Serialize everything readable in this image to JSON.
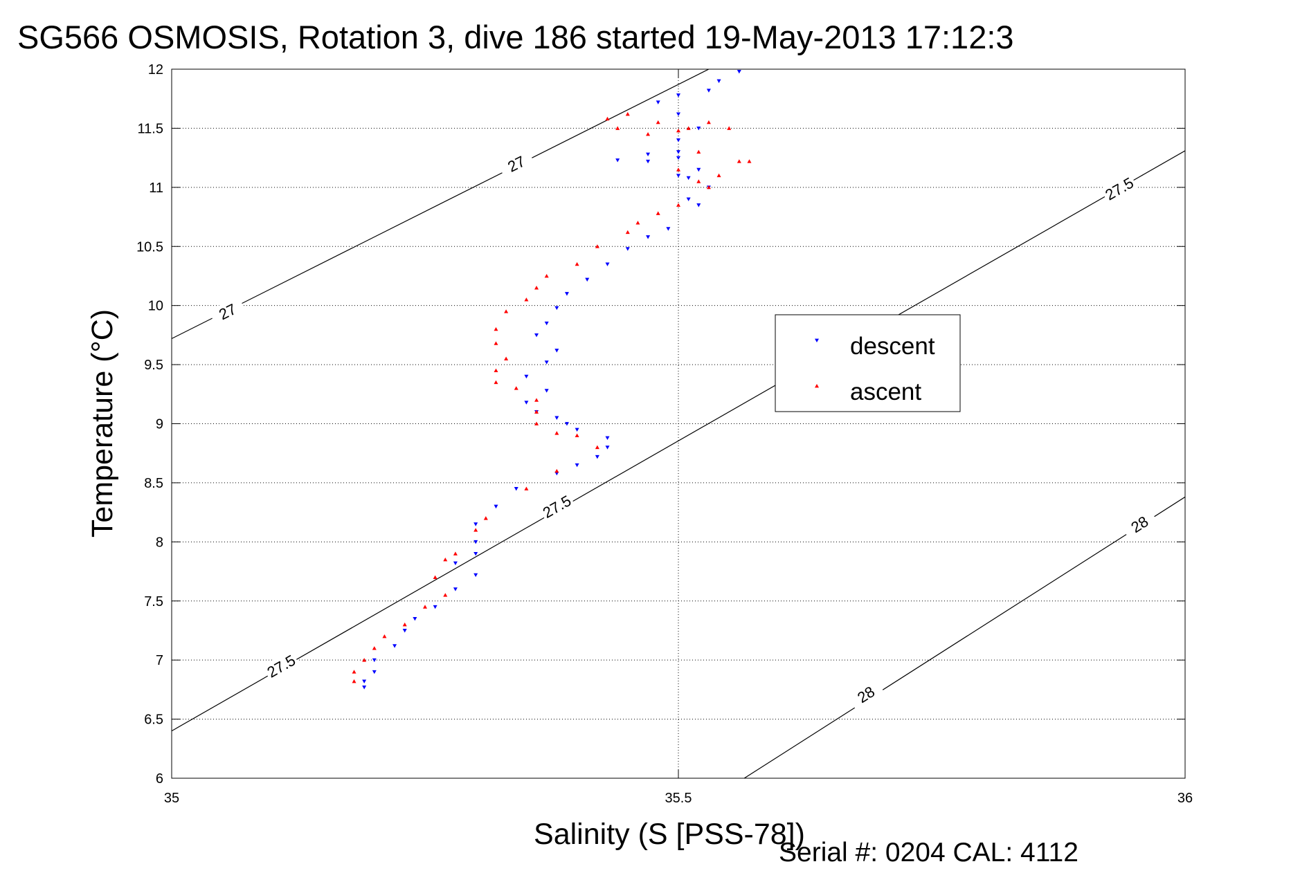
{
  "chart_data": {
    "type": "scatter",
    "title": "SG566 OSMOSIS, Rotation 3, dive 186 started 19-May-2013 17:12:3",
    "xlabel": "Salinity (S [PSS-78])",
    "ylabel": "Temperature (°C)",
    "footer": "Serial #: 0204  CAL: 4112",
    "xlim": [
      35,
      36
    ],
    "ylim": [
      6,
      12
    ],
    "xticks": [
      {
        "value": 35,
        "label": "35"
      },
      {
        "value": 35.5,
        "label": "35.5"
      },
      {
        "value": 36,
        "label": "36"
      }
    ],
    "yticks": [
      {
        "value": 6,
        "label": "6"
      },
      {
        "value": 6.5,
        "label": "6.5"
      },
      {
        "value": 7,
        "label": "7"
      },
      {
        "value": 7.5,
        "label": "7.5"
      },
      {
        "value": 8,
        "label": "8"
      },
      {
        "value": 8.5,
        "label": "8.5"
      },
      {
        "value": 9,
        "label": "9"
      },
      {
        "value": 9.5,
        "label": "9.5"
      },
      {
        "value": 10,
        "label": "10"
      },
      {
        "value": 10.5,
        "label": "10.5"
      },
      {
        "value": 11,
        "label": "11"
      },
      {
        "value": 11.5,
        "label": "11.5"
      },
      {
        "value": 12,
        "label": "12"
      }
    ],
    "grid": true,
    "legend_position": "right-center",
    "contours": [
      {
        "label": "27",
        "x": [
          35.0,
          35.53
        ],
        "y": [
          9.72,
          12.0
        ],
        "labels_at": [
          {
            "x": 35.055,
            "y": 9.95
          },
          {
            "x": 35.34,
            "y": 11.2
          }
        ]
      },
      {
        "label": "27.5",
        "x": [
          35.0,
          36.0
        ],
        "y": [
          6.4,
          11.31
        ],
        "labels_at": [
          {
            "x": 35.108,
            "y": 6.95
          },
          {
            "x": 35.38,
            "y": 8.3
          },
          {
            "x": 35.935,
            "y": 10.99
          }
        ]
      },
      {
        "label": "28",
        "x": [
          35.565,
          36.0
        ],
        "y": [
          6.0,
          8.38
        ],
        "labels_at": [
          {
            "x": 35.685,
            "y": 6.71
          },
          {
            "x": 35.955,
            "y": 8.15
          }
        ]
      }
    ],
    "series": [
      {
        "name": "descent",
        "color": "#0000ff",
        "marker": "triangle-down",
        "x": [
          35.56,
          35.54,
          35.53,
          35.5,
          35.48,
          35.5,
          35.52,
          35.5,
          35.47,
          35.44,
          35.47,
          35.5,
          35.5,
          35.52,
          35.5,
          35.51,
          35.53,
          35.51,
          35.52,
          35.49,
          35.47,
          35.45,
          35.43,
          35.41,
          35.39,
          35.38,
          35.37,
          35.36,
          35.38,
          35.37,
          35.35,
          35.37,
          35.35,
          35.36,
          35.38,
          35.39,
          35.4,
          35.43,
          35.43,
          35.42,
          35.4,
          35.38,
          35.34,
          35.32,
          35.3,
          35.3,
          35.3,
          35.28,
          35.3,
          35.28,
          35.26,
          35.24,
          35.23,
          35.22,
          35.2,
          35.2,
          35.19,
          35.19
        ],
        "y": [
          11.98,
          11.9,
          11.82,
          11.78,
          11.72,
          11.62,
          11.5,
          11.4,
          11.28,
          11.23,
          11.22,
          11.3,
          11.25,
          11.15,
          11.1,
          11.08,
          11.0,
          10.9,
          10.85,
          10.65,
          10.58,
          10.48,
          10.35,
          10.22,
          10.1,
          9.98,
          9.85,
          9.75,
          9.62,
          9.52,
          9.4,
          9.28,
          9.18,
          9.1,
          9.05,
          9.0,
          8.95,
          8.88,
          8.8,
          8.72,
          8.65,
          8.58,
          8.45,
          8.3,
          8.15,
          8.0,
          7.9,
          7.82,
          7.72,
          7.6,
          7.45,
          7.35,
          7.25,
          7.12,
          7.0,
          6.9,
          6.82,
          6.77
        ]
      },
      {
        "name": "ascent",
        "color": "#ff0000",
        "marker": "triangle-up",
        "x": [
          35.57,
          35.55,
          35.53,
          35.5,
          35.47,
          35.44,
          35.43,
          35.45,
          35.48,
          35.51,
          35.52,
          35.5,
          35.52,
          35.54,
          35.56,
          35.53,
          35.5,
          35.48,
          35.46,
          35.45,
          35.42,
          35.4,
          35.37,
          35.36,
          35.35,
          35.33,
          35.32,
          35.32,
          35.33,
          35.32,
          35.32,
          35.34,
          35.36,
          35.36,
          35.36,
          35.38,
          35.4,
          35.42,
          35.38,
          35.35,
          35.31,
          35.3,
          35.28,
          35.27,
          35.26,
          35.27,
          35.25,
          35.23,
          35.21,
          35.2,
          35.19,
          35.18,
          35.18
        ],
        "y": [
          11.22,
          11.5,
          11.55,
          11.48,
          11.45,
          11.5,
          11.58,
          11.62,
          11.55,
          11.5,
          11.3,
          11.15,
          11.05,
          11.1,
          11.22,
          11.0,
          10.85,
          10.78,
          10.7,
          10.62,
          10.5,
          10.35,
          10.25,
          10.15,
          10.05,
          9.95,
          9.8,
          9.68,
          9.55,
          9.45,
          9.35,
          9.3,
          9.2,
          9.1,
          9.0,
          8.92,
          8.9,
          8.8,
          8.6,
          8.45,
          8.2,
          8.1,
          7.9,
          7.85,
          7.7,
          7.55,
          7.45,
          7.3,
          7.2,
          7.1,
          7.0,
          6.9,
          6.82
        ]
      }
    ]
  }
}
